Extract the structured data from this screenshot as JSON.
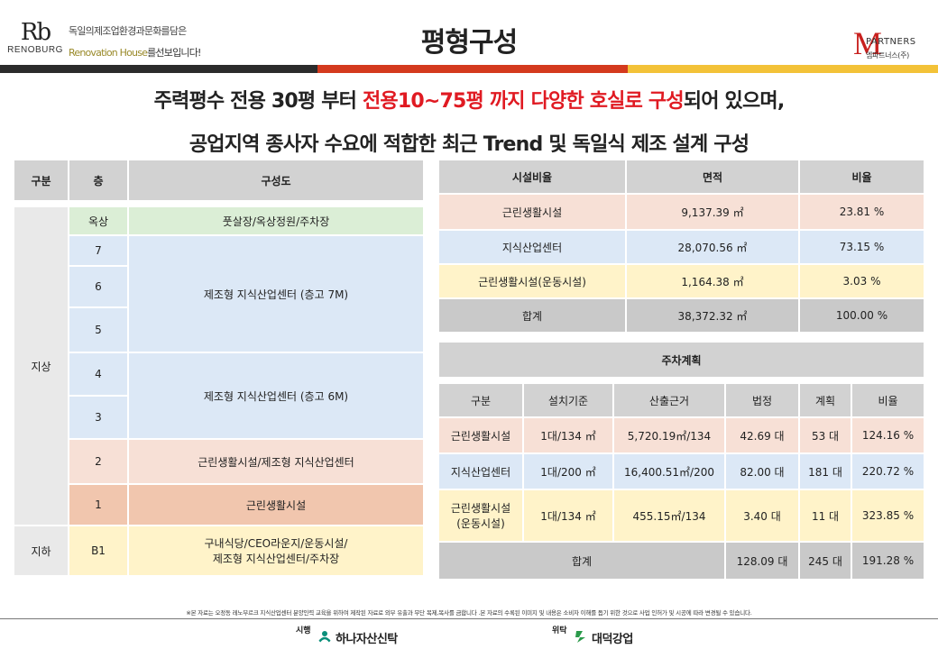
{
  "header": {
    "brand_mark": "Rb",
    "brand_name": "RENOBURG",
    "tagline_line1": "독일의제조업환경과문화를담은",
    "tagline_line2_highlight": "Renovation House",
    "tagline_line2_rest": "를선보입니다!",
    "title": "평형구성",
    "partner_mark": "M",
    "partner_name": "PARTNERS",
    "partner_name_kr": "엠파트너스(주)"
  },
  "headline": {
    "line1_pre": "주력평수 전용 30평 부터 ",
    "line1_highlight": "전용10~75평 까지 다양한 호실로 구성",
    "line1_post": "되어 있으며,",
    "line2": "공업지역 종사자 수요에 적합한 최근 Trend 및 독일식 제조 설계 구성"
  },
  "floor_table": {
    "headers": [
      "구분",
      "층",
      "구성도"
    ],
    "group_above": "지상",
    "group_below": "지하",
    "rows": [
      {
        "floor": "옥상",
        "desc": "풋살장/옥상정원/주차장"
      },
      {
        "floor": "7",
        "desc": "제조형 지식산업센터 (층고 7M)"
      },
      {
        "floor": "6"
      },
      {
        "floor": "5"
      },
      {
        "floor": "4",
        "desc": "제조형 지식산업센터 (층고 6M)"
      },
      {
        "floor": "3"
      },
      {
        "floor": "2",
        "desc": "근린생활시설/제조형 지식산업센터"
      },
      {
        "floor": "1",
        "desc": "근린생활시설"
      },
      {
        "floor": "B1",
        "desc_line1": "구내식당/CEO라운지/운동시설/",
        "desc_line2": "제조형 지식산업센터/주차장"
      }
    ]
  },
  "facility_table": {
    "headers": [
      "시설비율",
      "면적",
      "비율"
    ],
    "rows": [
      {
        "name": "근린생활시설",
        "area": "9,137.39 ㎡",
        "ratio": "23.81 %"
      },
      {
        "name": "지식산업센터",
        "area": "28,070.56 ㎡",
        "ratio": "73.15 %"
      },
      {
        "name": "근린생활시설(운동시설)",
        "area": "1,164.38 ㎡",
        "ratio": "3.03 %"
      },
      {
        "name": "합계",
        "area": "38,372.32 ㎡",
        "ratio": "100.00 %"
      }
    ]
  },
  "parking_table": {
    "title": "주차계획",
    "headers": [
      "구분",
      "설치기준",
      "산출근거",
      "법정",
      "계획",
      "비율"
    ],
    "rows": [
      {
        "name": "근린생활시설",
        "standard": "1대/134 ㎡",
        "basis": "5,720.19㎡/134",
        "legal": "42.69 대",
        "plan": "53 대",
        "ratio": "124.16 %"
      },
      {
        "name": "지식산업센터",
        "standard": "1대/200 ㎡",
        "basis": "16,400.51㎡/200",
        "legal": "82.00 대",
        "plan": "181 대",
        "ratio": "220.72 %"
      },
      {
        "name_line1": "근린생활시설",
        "name_line2": "(운동시설)",
        "standard": "1대/134 ㎡",
        "basis": "455.15㎡/134",
        "legal": "3.40 대",
        "plan": "11 대",
        "ratio": "323.85 %"
      }
    ],
    "total": {
      "label": "합계",
      "legal": "128.09 대",
      "plan": "245 대",
      "ratio": "191.28 %"
    }
  },
  "footer": {
    "disclaimer": "※본 자료는 오정동 레노부르크 지식산업센터 분양인력 교육을 위하여 제작된 자료로 외부 유출과 무단 복제,복사를 금합니다 .본 자료의 수록된 이미지 및 내용은 소비자 이해를 돕기 위한 것으로 사업 인허가 및 시공에 따라 변경될 수 있습니다.",
    "sponsor1_role": "시행",
    "sponsor1_name": "하나자산신탁",
    "sponsor2_role": "위탁",
    "sponsor2_name": "대덕강업"
  },
  "colors": {
    "accent_red": "#e01a22",
    "stripe_dark": "#2b2b2b",
    "stripe_red": "#d43a1e",
    "stripe_yellow": "#f3c238"
  }
}
